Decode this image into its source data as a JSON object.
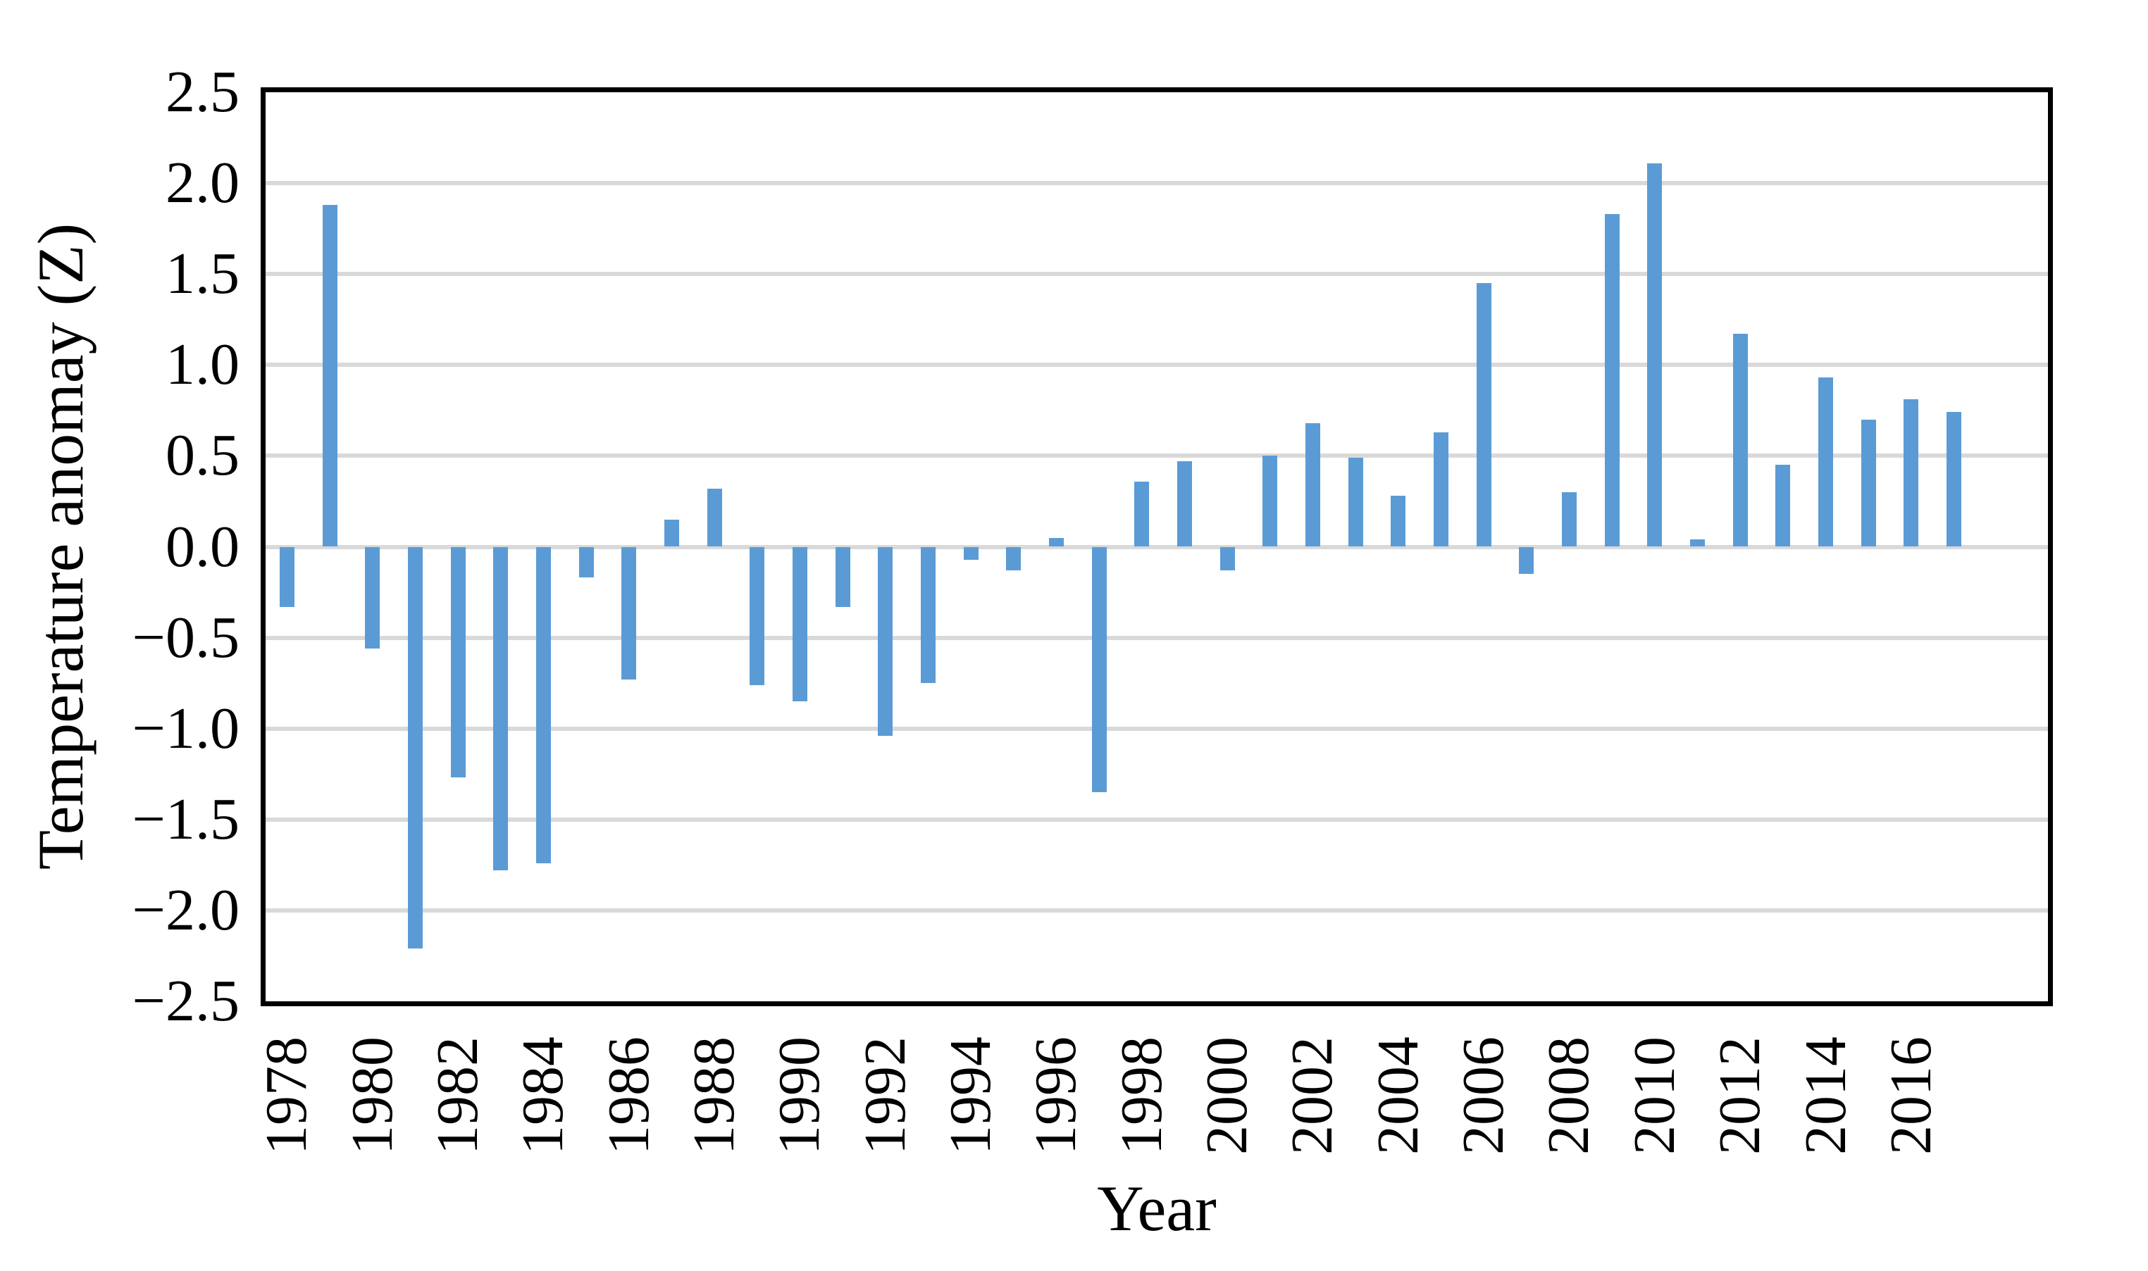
{
  "chart_data": {
    "type": "bar",
    "title": "",
    "xlabel": "Year",
    "ylabel": "Temperature anomay (Z)",
    "categories": [
      1978,
      1979,
      1980,
      1981,
      1982,
      1983,
      1984,
      1985,
      1986,
      1987,
      1988,
      1989,
      1990,
      1991,
      1992,
      1993,
      1994,
      1995,
      1996,
      1997,
      1998,
      1999,
      2000,
      2001,
      2002,
      2003,
      2004,
      2005,
      2006,
      2007,
      2008,
      2009,
      2010,
      2011,
      2012,
      2013,
      2014,
      2015,
      2016,
      2017
    ],
    "values": [
      -0.33,
      1.88,
      -0.56,
      -2.21,
      -1.27,
      -1.78,
      -1.74,
      -0.17,
      -0.73,
      0.15,
      0.32,
      -0.76,
      -0.85,
      -0.33,
      -1.04,
      -0.75,
      -0.07,
      -0.13,
      0.05,
      -1.35,
      0.36,
      0.47,
      -0.13,
      0.5,
      0.68,
      0.49,
      0.28,
      0.63,
      1.45,
      -0.15,
      0.3,
      1.83,
      2.11,
      0.04,
      1.17,
      0.45,
      0.93,
      0.7,
      0.81,
      0.74
    ],
    "ylim": [
      -2.5,
      2.5
    ],
    "y_tick_step": 0.5,
    "y_ticks": [
      "2.5",
      "2.0",
      "1.5",
      "1.0",
      "0.5",
      "0.0",
      "−0.5",
      "−1.0",
      "−1.5",
      "−2.0",
      "−2.5"
    ],
    "x_ticks": [
      "1978",
      "1980",
      "1982",
      "1984",
      "1986",
      "1988",
      "1990",
      "1992",
      "1994",
      "1996",
      "1998",
      "2000",
      "2002",
      "2004",
      "2006",
      "2008",
      "2010",
      "2012",
      "2014",
      "2016"
    ],
    "x_tick_interval": 2,
    "grid": "horizontal-on",
    "legend": "none",
    "bar_color": "#5B9BD5",
    "gridline_color": "#D9D9D9",
    "axis_color": "#000000",
    "background_color": "#FFFFFF"
  }
}
